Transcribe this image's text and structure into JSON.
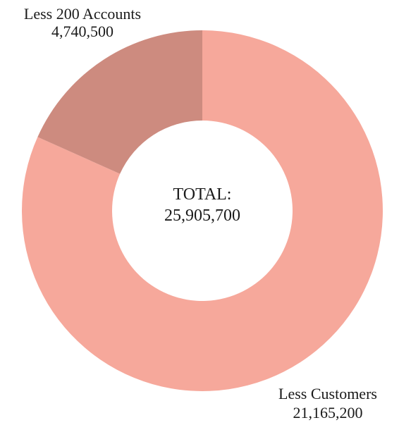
{
  "chart_data": {
    "type": "pie",
    "variant": "donut",
    "title": "",
    "slices": [
      {
        "label": "Less Customers",
        "value": 21165200,
        "value_text": "21,165,200",
        "color": "#f6a89b"
      },
      {
        "label": "Less 200 Accounts",
        "value": 4740500,
        "value_text": "4,740,500",
        "color": "#cd8b7f"
      }
    ],
    "center": {
      "title": "TOTAL:",
      "value": 25905700,
      "value_text": "25,905,700"
    },
    "legend": "none"
  }
}
